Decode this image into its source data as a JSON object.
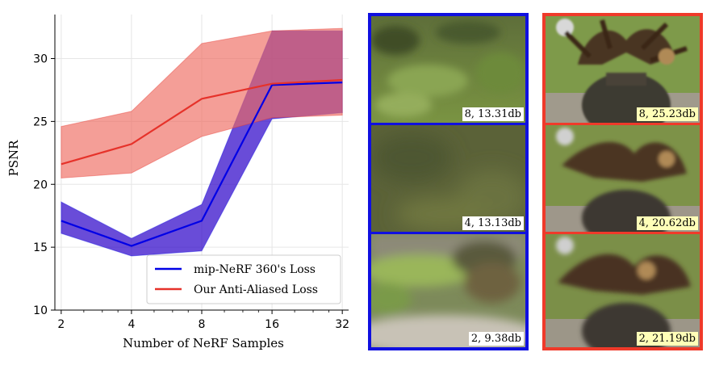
{
  "chart_data": {
    "type": "line",
    "xlabel": "Number of NeRF Samples",
    "ylabel": "PSNR",
    "x": [
      2,
      4,
      8,
      16,
      32
    ],
    "x_scale": "log2",
    "xticks": [
      "2",
      "4",
      "8",
      "16",
      "32"
    ],
    "yticks": [
      10,
      15,
      20,
      25,
      30
    ],
    "ylim": [
      10,
      33.5
    ],
    "grid": true,
    "legend_position": "lower-right",
    "series": [
      {
        "name": "mip-NeRF 360's Loss",
        "color": "#0000e6",
        "fill": "#2a00c8",
        "mean": [
          17.1,
          15.1,
          17.1,
          27.9,
          28.1
        ],
        "low": [
          16.1,
          14.3,
          14.7,
          25.2,
          25.7
        ],
        "high": [
          18.6,
          15.7,
          18.4,
          32.2,
          32.2
        ]
      },
      {
        "name": "Our Anti-Aliased Loss",
        "color": "#e6322a",
        "fill": "#ee6a60",
        "mean": [
          21.6,
          23.2,
          26.8,
          28.0,
          28.3
        ],
        "low": [
          20.5,
          20.9,
          23.8,
          25.3,
          25.5
        ],
        "high": [
          24.6,
          25.8,
          31.2,
          32.2,
          32.4
        ]
      }
    ]
  },
  "panels": {
    "baseline": {
      "border_color": "#1010e0",
      "items": [
        {
          "label": "8, 13.31db",
          "scene": "grass-sharp"
        },
        {
          "label": "4, 13.13db",
          "scene": "grass-blur"
        },
        {
          "label": "2, 9.38db",
          "scene": "garden-blur"
        }
      ]
    },
    "ours": {
      "border_color": "#ef3a2a",
      "items": [
        {
          "label": "8, 25.23db",
          "scene": "vase-sharp"
        },
        {
          "label": "4, 20.62db",
          "scene": "vase-medium"
        },
        {
          "label": "2, 21.19db",
          "scene": "vase-soft"
        }
      ]
    }
  }
}
